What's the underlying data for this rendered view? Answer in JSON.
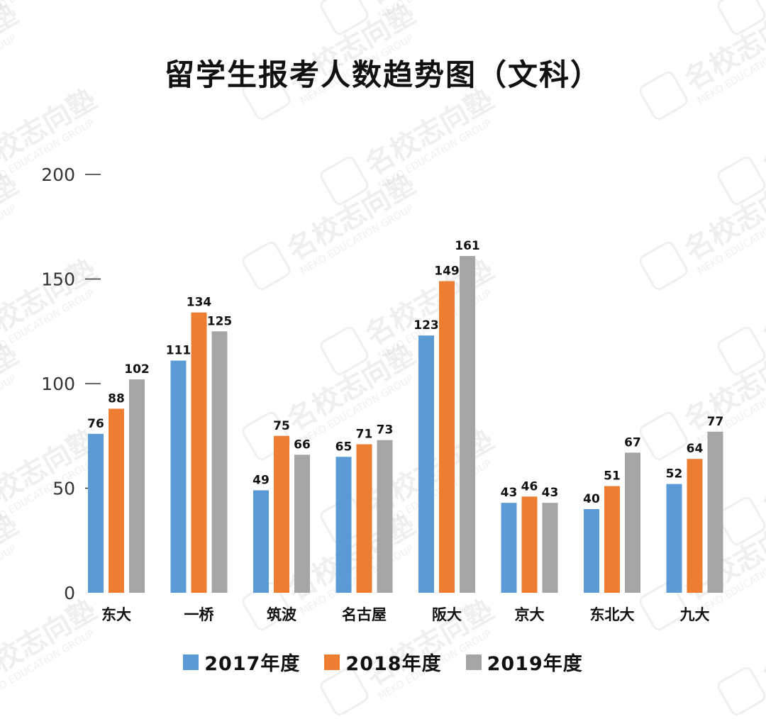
{
  "chart_data": {
    "type": "bar",
    "title": "留学生报考人数趋势图（文科）",
    "categories": [
      "东大",
      "一桥",
      "筑波",
      "名古屋",
      "阪大",
      "京大",
      "东北大",
      "九大"
    ],
    "series": [
      {
        "name": "2017年度",
        "color": "#5b9bd5",
        "values": [
          76,
          111,
          49,
          65,
          123,
          43,
          40,
          52
        ]
      },
      {
        "name": "2018年度",
        "color": "#ed7d31",
        "values": [
          88,
          134,
          75,
          71,
          149,
          46,
          51,
          64
        ]
      },
      {
        "name": "2019年度",
        "color": "#a5a5a5",
        "values": [
          102,
          125,
          66,
          73,
          161,
          43,
          67,
          77
        ]
      }
    ],
    "ylim": [
      0,
      200
    ],
    "yticks": [
      0,
      50,
      100,
      150,
      200
    ],
    "legend": "bottom",
    "grid": false
  },
  "watermark": {
    "name_cn": "名校志向塾",
    "name_en": "MEKO EDUCATION GROUP"
  }
}
